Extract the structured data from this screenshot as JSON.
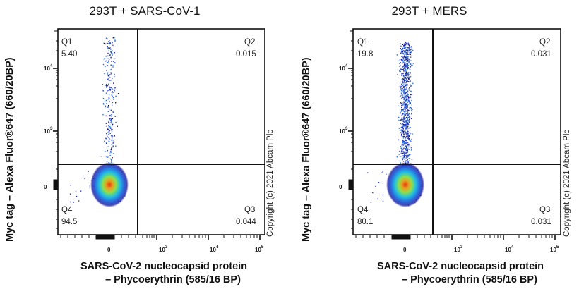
{
  "chart_data": [
    {
      "type": "scatter",
      "subtype": "flow-cytometry-density-dot-plot",
      "title": "293T + SARS-CoV-1",
      "xlabel": "SARS-CoV-2 nucleocapsid protein – Phycoerythrin (585/16 BP)",
      "ylabel": "Myc tag – Alexa Fluor®647 (660/20BP)",
      "x_ticks": [
        "0",
        "10^3",
        "10^4",
        "10^5"
      ],
      "y_ticks": [
        "0",
        "10^3",
        "10^4"
      ],
      "x_scale": "biexponential",
      "y_scale": "biexponential",
      "quadrants": [
        {
          "name": "Q1",
          "value": 5.4
        },
        {
          "name": "Q2",
          "value": 0.015
        },
        {
          "name": "Q3",
          "value": 0.044
        },
        {
          "name": "Q4",
          "value": 94.5
        }
      ],
      "colors": {
        "density_low": "#1a1aa0",
        "density_mid": "#22c0e0",
        "density_high_mid": "#8ee04a",
        "density_peak": "#e03a10"
      },
      "copyright": "Copyright (c) 2021 Abcam Plc"
    },
    {
      "type": "scatter",
      "subtype": "flow-cytometry-density-dot-plot",
      "title": "293T + MERS",
      "xlabel": "SARS-CoV-2 nucleocapsid protein – Phycoerythrin (585/16 BP)",
      "ylabel": "Myc tag – Alexa Fluor®647 (660/20BP)",
      "x_ticks": [
        "0",
        "10^3",
        "10^4",
        "10^5"
      ],
      "y_ticks": [
        "0",
        "10^3",
        "10^4"
      ],
      "x_scale": "biexponential",
      "y_scale": "biexponential",
      "quadrants": [
        {
          "name": "Q1",
          "value": 19.8
        },
        {
          "name": "Q2",
          "value": 0.031
        },
        {
          "name": "Q3",
          "value": 0.031
        },
        {
          "name": "Q4",
          "value": 80.1
        }
      ],
      "colors": {
        "density_low": "#1a1aa0",
        "density_mid": "#22c0e0",
        "density_high_mid": "#8ee04a",
        "density_peak": "#e03a10"
      },
      "copyright": "Copyright (c) 2021 Abcam Plc"
    }
  ],
  "panels": [
    {
      "title": "293T + SARS-CoV-1",
      "ylabel": "Myc tag – Alexa Fluor®647 (660/20BP)",
      "xlabel_line1": "SARS-CoV-2 nucleocapsid protein",
      "xlabel_line2": "– Phycoerythrin (585/16 BP)",
      "copyright": "Copyright (c) 2021 Abcam Plc",
      "q1": {
        "label": "Q1",
        "value": "5.40"
      },
      "q2": {
        "label": "Q2",
        "value": "0.015"
      },
      "q3": {
        "label": "Q3",
        "value": "0.044"
      },
      "q4": {
        "label": "Q4",
        "value": "94.5"
      },
      "yticks": {
        "zero": "0",
        "e3": "10",
        "e3_exp": "3",
        "e4": "10",
        "e4_exp": "4"
      },
      "xticks": {
        "zero": "0",
        "e3": "10",
        "e3_exp": "3",
        "e4": "10",
        "e4_exp": "4",
        "e5": "10",
        "e5_exp": "5"
      }
    },
    {
      "title": "293T + MERS",
      "ylabel": "Myc tag – Alexa Fluor®647 (660/20BP)",
      "xlabel_line1": "SARS-CoV-2 nucleocapsid protein",
      "xlabel_line2": "– Phycoerythrin (585/16 BP)",
      "copyright": "Copyright (c) 2021 Abcam Plc",
      "q1": {
        "label": "Q1",
        "value": "19.8"
      },
      "q2": {
        "label": "Q2",
        "value": "0.031"
      },
      "q3": {
        "label": "Q3",
        "value": "0.031"
      },
      "q4": {
        "label": "Q4",
        "value": "80.1"
      },
      "yticks": {
        "zero": "0",
        "e3": "10",
        "e3_exp": "3",
        "e4": "10",
        "e4_exp": "4"
      },
      "xticks": {
        "zero": "0",
        "e3": "10",
        "e3_exp": "3",
        "e4": "10",
        "e4_exp": "4",
        "e5": "10",
        "e5_exp": "5"
      }
    }
  ]
}
